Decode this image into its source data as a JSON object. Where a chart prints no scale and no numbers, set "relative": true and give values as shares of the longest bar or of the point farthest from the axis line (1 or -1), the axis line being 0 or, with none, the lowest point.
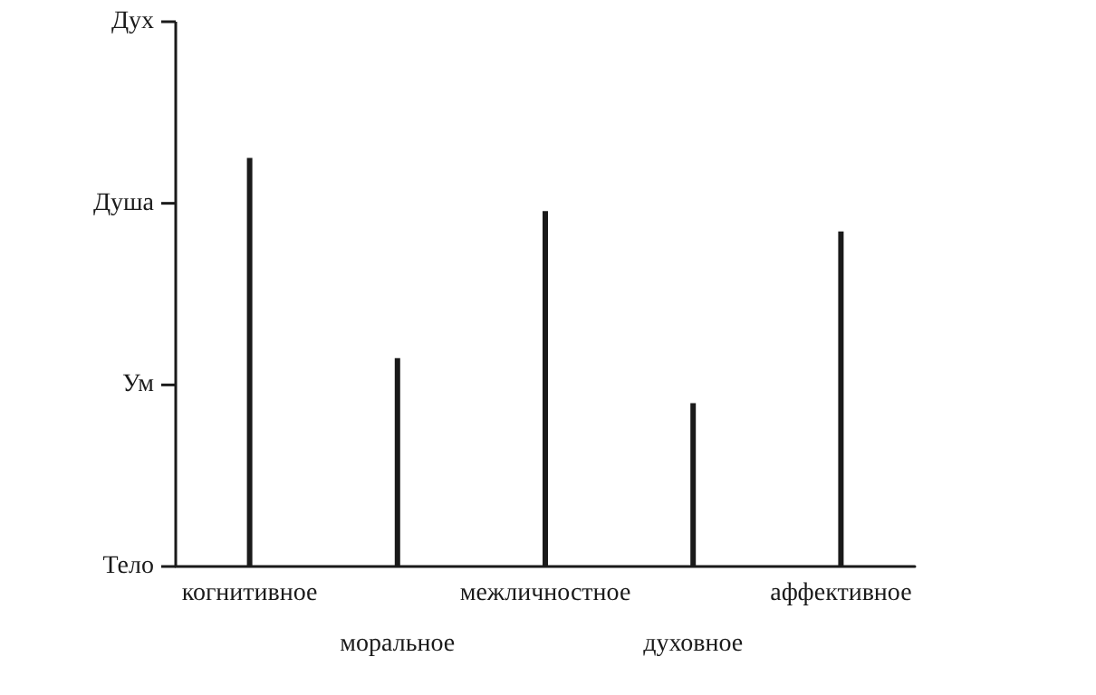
{
  "chart_data": {
    "type": "bar",
    "relative": true,
    "categories": [
      "когнитивное",
      "моральное",
      "межличностное",
      "духовное",
      "аффективное"
    ],
    "values": [
      1,
      0.51,
      0.87,
      0.4,
      0.82
    ],
    "color": "#1a1a1a",
    "annotations": [
      "Тело",
      "Ум",
      "Душа",
      "Дух"
    ]
  }
}
